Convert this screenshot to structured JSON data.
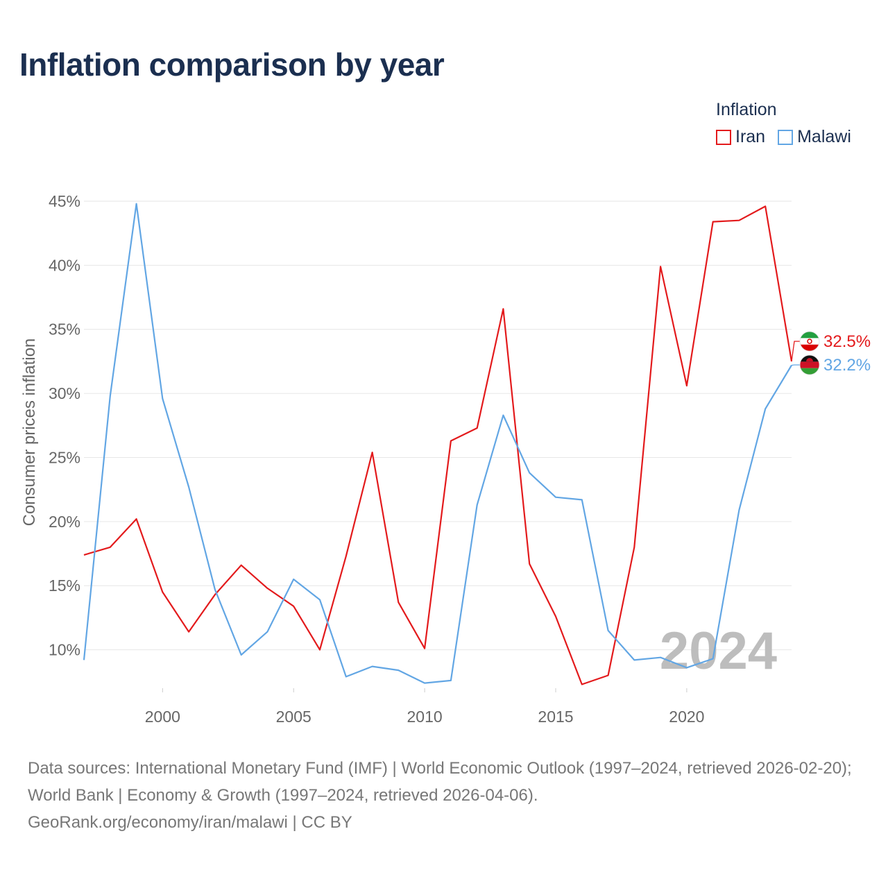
{
  "title": "Inflation comparison by year",
  "legend": {
    "title": "Inflation",
    "items": [
      {
        "label": "Iran",
        "color": "#e31a1c"
      },
      {
        "label": "Malawi",
        "color": "#62a6e4"
      }
    ]
  },
  "watermark_year": "2024",
  "footer": {
    "sources": "Data sources: International Monetary Fund (IMF) | World Economic Outlook (1997–2024, retrieved 2026-02-20); World Bank | Economy & Growth (1997–2024, retrieved 2026-04-06).",
    "credit": "GeoRank.org/economy/iran/malawi | CC BY"
  },
  "chart_data": {
    "type": "line",
    "ylabel": "Consumer prices inflation",
    "xlim": [
      1997,
      2024
    ],
    "ylim": [
      7.0,
      45.0
    ],
    "yticks": [
      10,
      15,
      20,
      25,
      30,
      35,
      40,
      45
    ],
    "ytick_labels": [
      "10%",
      "15%",
      "20%",
      "25%",
      "30%",
      "35%",
      "40%",
      "45%"
    ],
    "xticks": [
      2000,
      2005,
      2010,
      2015,
      2020
    ],
    "xtick_labels": [
      "2000",
      "2005",
      "2010",
      "2015",
      "2020"
    ],
    "x": [
      1997,
      1998,
      1999,
      2000,
      2001,
      2002,
      2003,
      2004,
      2005,
      2006,
      2007,
      2008,
      2009,
      2010,
      2011,
      2012,
      2013,
      2014,
      2015,
      2016,
      2017,
      2018,
      2019,
      2020,
      2021,
      2022,
      2023,
      2024
    ],
    "series": [
      {
        "name": "Iran",
        "color": "#e31a1c",
        "end_label": "32.5%",
        "values": [
          17.4,
          18.0,
          20.2,
          14.5,
          11.4,
          14.3,
          16.6,
          14.8,
          13.4,
          10.0,
          17.3,
          25.4,
          13.7,
          10.1,
          26.3,
          27.3,
          36.6,
          16.7,
          12.6,
          7.3,
          8.0,
          18.0,
          39.9,
          30.6,
          43.4,
          43.5,
          44.6,
          32.5
        ]
      },
      {
        "name": "Malawi",
        "color": "#62a6e4",
        "end_label": "32.2%",
        "values": [
          9.2,
          29.8,
          44.8,
          29.6,
          22.7,
          14.7,
          9.6,
          11.4,
          15.5,
          13.9,
          7.9,
          8.7,
          8.4,
          7.4,
          7.6,
          21.3,
          28.3,
          23.8,
          21.9,
          21.7,
          11.5,
          9.2,
          9.4,
          8.6,
          9.3,
          20.9,
          28.8,
          32.2
        ]
      }
    ]
  }
}
